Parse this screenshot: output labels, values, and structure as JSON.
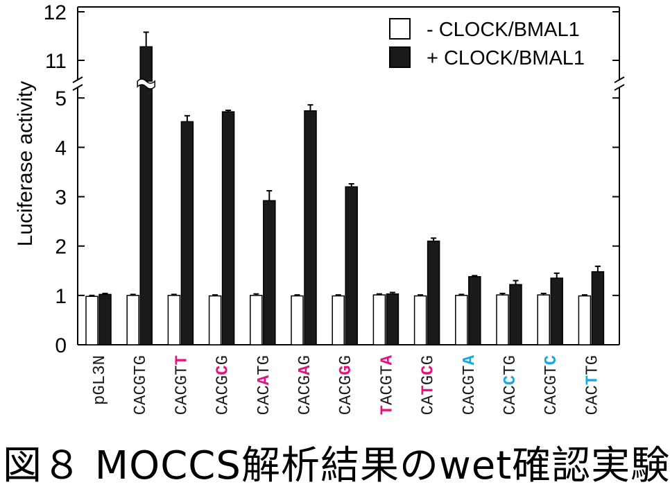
{
  "caption": "図８ MOCCS解析結果のwet確認実験",
  "chart_data": {
    "type": "bar",
    "ylabel": "Luciferase activity",
    "y_ticks_lower": [
      "0",
      "1",
      "2",
      "3",
      "4",
      "5"
    ],
    "y_ticks_upper": [
      "11",
      "12"
    ],
    "ylim_lower": [
      0,
      5.2
    ],
    "ylim_upper": [
      10.6,
      12.1
    ],
    "axis_break": true,
    "legend_position": "top-right",
    "colors": {
      "minus": "#ffffff",
      "plus": "#1a1a1a",
      "magenta": "#e0157f",
      "cyan": "#1aa7dc"
    },
    "categories": [
      [
        {
          "t": "pGL3N",
          "c": "black"
        }
      ],
      [
        {
          "t": "CACGTG",
          "c": "black"
        }
      ],
      [
        {
          "t": "CACGT",
          "c": "black"
        },
        {
          "t": "T",
          "c": "magenta"
        }
      ],
      [
        {
          "t": "CACG",
          "c": "black"
        },
        {
          "t": "C",
          "c": "magenta"
        },
        {
          "t": "G",
          "c": "black"
        }
      ],
      [
        {
          "t": "CAC",
          "c": "black"
        },
        {
          "t": "A",
          "c": "magenta"
        },
        {
          "t": "TG",
          "c": "black"
        }
      ],
      [
        {
          "t": "CACG",
          "c": "black"
        },
        {
          "t": "A",
          "c": "magenta"
        },
        {
          "t": "G",
          "c": "black"
        }
      ],
      [
        {
          "t": "CACG",
          "c": "black"
        },
        {
          "t": "G",
          "c": "magenta"
        },
        {
          "t": "G",
          "c": "black"
        }
      ],
      [
        {
          "t": "T",
          "c": "magenta"
        },
        {
          "t": "ACGT",
          "c": "black"
        },
        {
          "t": "A",
          "c": "magenta"
        }
      ],
      [
        {
          "t": "CA",
          "c": "black"
        },
        {
          "t": "T",
          "c": "magenta"
        },
        {
          "t": "G",
          "c": "black"
        },
        {
          "t": "C",
          "c": "magenta"
        },
        {
          "t": "G",
          "c": "black"
        }
      ],
      [
        {
          "t": "CACGT",
          "c": "black"
        },
        {
          "t": "A",
          "c": "cyan"
        }
      ],
      [
        {
          "t": "CAC",
          "c": "black"
        },
        {
          "t": "C",
          "c": "cyan"
        },
        {
          "t": "TG",
          "c": "black"
        }
      ],
      [
        {
          "t": "CACGT",
          "c": "black"
        },
        {
          "t": "C",
          "c": "cyan"
        }
      ],
      [
        {
          "t": "CAC",
          "c": "black"
        },
        {
          "t": "T",
          "c": "cyan"
        },
        {
          "t": "TG",
          "c": "black"
        }
      ]
    ],
    "series": [
      {
        "name": "- CLOCK/BMAL1",
        "values": [
          0.98,
          1.0,
          1.0,
          0.99,
          1.0,
          0.99,
          0.99,
          1.01,
          0.99,
          1.0,
          1.01,
          1.01,
          0.99
        ],
        "errors": [
          0.02,
          0.02,
          0.02,
          0.02,
          0.03,
          0.02,
          0.02,
          0.02,
          0.02,
          0.02,
          0.03,
          0.03,
          0.02
        ]
      },
      {
        "name": "+ CLOCK/BMAL1",
        "values": [
          1.02,
          11.28,
          4.52,
          4.72,
          2.92,
          4.74,
          3.2,
          1.03,
          2.1,
          1.38,
          1.22,
          1.35,
          1.48
        ],
        "errors": [
          0.02,
          0.3,
          0.12,
          0.03,
          0.2,
          0.12,
          0.06,
          0.03,
          0.06,
          0.02,
          0.08,
          0.1,
          0.11
        ]
      }
    ]
  }
}
